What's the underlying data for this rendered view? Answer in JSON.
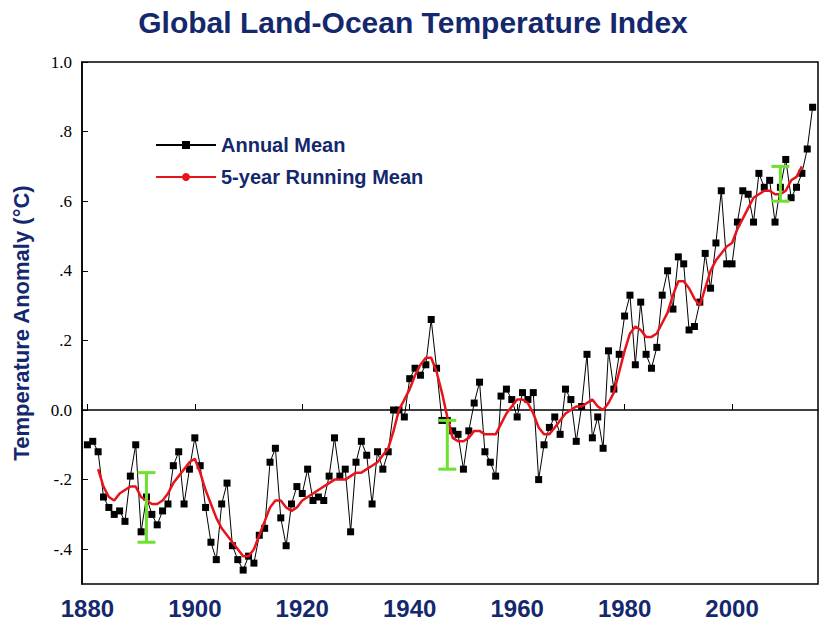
{
  "chart_data": {
    "type": "line",
    "title": "Global Land-Ocean Temperature Index",
    "y_label": "Temperature Anomaly (°C)",
    "legend": "upper left",
    "grid": false,
    "xlim": [
      1879,
      2016
    ],
    "xticks": [
      1880,
      1900,
      1920,
      1940,
      1960,
      1980,
      2000
    ],
    "ylim": [
      -0.5,
      1.0
    ],
    "yticks": [
      {
        "value": -0.4,
        "label": "-.4"
      },
      {
        "value": -0.2,
        "label": "-.2"
      },
      {
        "value": 0,
        "label": "0.0"
      },
      {
        "value": 0.2,
        "label": ".2"
      },
      {
        "value": 0.4,
        "label": ".4"
      },
      {
        "value": 0.6,
        "label": ".6"
      },
      {
        "value": 0.8,
        "label": ".8"
      },
      {
        "value": 1.0,
        "label": "1.0"
      }
    ],
    "x": [
      1880,
      1881,
      1882,
      1883,
      1884,
      1885,
      1886,
      1887,
      1888,
      1889,
      1890,
      1891,
      1892,
      1893,
      1894,
      1895,
      1896,
      1897,
      1898,
      1899,
      1900,
      1901,
      1902,
      1903,
      1904,
      1905,
      1906,
      1907,
      1908,
      1909,
      1910,
      1911,
      1912,
      1913,
      1914,
      1915,
      1916,
      1917,
      1918,
      1919,
      1920,
      1921,
      1922,
      1923,
      1924,
      1925,
      1926,
      1927,
      1928,
      1929,
      1930,
      1931,
      1932,
      1933,
      1934,
      1935,
      1936,
      1937,
      1938,
      1939,
      1940,
      1941,
      1942,
      1943,
      1944,
      1945,
      1946,
      1947,
      1948,
      1949,
      1950,
      1951,
      1952,
      1953,
      1954,
      1955,
      1956,
      1957,
      1958,
      1959,
      1960,
      1961,
      1962,
      1963,
      1964,
      1965,
      1966,
      1967,
      1968,
      1969,
      1970,
      1971,
      1972,
      1973,
      1974,
      1975,
      1976,
      1977,
      1978,
      1979,
      1980,
      1981,
      1982,
      1983,
      1984,
      1985,
      1986,
      1987,
      1988,
      1989,
      1990,
      1991,
      1992,
      1993,
      1994,
      1995,
      1996,
      1997,
      1998,
      1999,
      2000,
      2001,
      2002,
      2003,
      2004,
      2005,
      2006,
      2007,
      2008,
      2009,
      2010,
      2011,
      2012,
      2013,
      2014,
      2015
    ],
    "series": [
      {
        "name": "Annual Mean",
        "color": "#000000",
        "marker": "square",
        "line_style": "solid",
        "values": [
          -0.1,
          -0.09,
          -0.12,
          -0.25,
          -0.28,
          -0.3,
          -0.29,
          -0.32,
          -0.19,
          -0.1,
          -0.35,
          -0.25,
          -0.3,
          -0.33,
          -0.29,
          -0.27,
          -0.16,
          -0.12,
          -0.27,
          -0.17,
          -0.08,
          -0.16,
          -0.28,
          -0.38,
          -0.43,
          -0.27,
          -0.21,
          -0.39,
          -0.43,
          -0.46,
          -0.42,
          -0.44,
          -0.36,
          -0.34,
          -0.15,
          -0.11,
          -0.31,
          -0.39,
          -0.27,
          -0.22,
          -0.24,
          -0.17,
          -0.26,
          -0.25,
          -0.26,
          -0.19,
          -0.08,
          -0.19,
          -0.17,
          -0.35,
          -0.15,
          -0.09,
          -0.13,
          -0.27,
          -0.12,
          -0.17,
          -0.12,
          0.0,
          0.0,
          -0.02,
          0.09,
          0.12,
          0.1,
          0.13,
          0.26,
          0.12,
          -0.03,
          -0.03,
          -0.06,
          -0.07,
          -0.17,
          -0.06,
          0.02,
          0.08,
          -0.12,
          -0.15,
          -0.19,
          0.04,
          0.06,
          0.03,
          -0.02,
          0.05,
          0.03,
          0.05,
          -0.2,
          -0.1,
          -0.05,
          -0.02,
          -0.07,
          0.06,
          0.03,
          -0.09,
          0.01,
          0.16,
          -0.08,
          -0.02,
          -0.11,
          0.17,
          0.06,
          0.16,
          0.27,
          0.33,
          0.13,
          0.31,
          0.16,
          0.12,
          0.18,
          0.33,
          0.4,
          0.29,
          0.44,
          0.42,
          0.23,
          0.24,
          0.31,
          0.45,
          0.35,
          0.48,
          0.63,
          0.42,
          0.42,
          0.54,
          0.63,
          0.62,
          0.54,
          0.68,
          0.64,
          0.66,
          0.54,
          0.64,
          0.72,
          0.61,
          0.64,
          0.68,
          0.75,
          0.87
        ]
      },
      {
        "name": "5-year Running Mean",
        "color": "#e8141b",
        "line_style": "solid",
        "values": [
          null,
          null,
          -0.17,
          -0.22,
          -0.25,
          -0.26,
          -0.24,
          -0.23,
          -0.22,
          -0.22,
          -0.25,
          -0.26,
          -0.27,
          -0.27,
          -0.26,
          -0.24,
          -0.21,
          -0.19,
          -0.17,
          -0.15,
          -0.14,
          -0.18,
          -0.23,
          -0.27,
          -0.31,
          -0.34,
          -0.36,
          -0.38,
          -0.4,
          -0.42,
          -0.42,
          -0.4,
          -0.36,
          -0.32,
          -0.28,
          -0.26,
          -0.26,
          -0.28,
          -0.29,
          -0.28,
          -0.26,
          -0.25,
          -0.24,
          -0.23,
          -0.22,
          -0.21,
          -0.2,
          -0.2,
          -0.2,
          -0.19,
          -0.18,
          -0.18,
          -0.17,
          -0.16,
          -0.15,
          -0.13,
          -0.11,
          -0.06,
          0.0,
          0.03,
          0.06,
          0.1,
          0.13,
          0.15,
          0.15,
          0.11,
          0.05,
          -0.02,
          -0.08,
          -0.09,
          -0.09,
          -0.08,
          -0.06,
          -0.06,
          -0.07,
          -0.07,
          -0.07,
          -0.04,
          -0.01,
          0.01,
          0.03,
          0.03,
          0.02,
          -0.01,
          -0.05,
          -0.07,
          -0.07,
          -0.05,
          -0.03,
          -0.01,
          0.0,
          0.01,
          0.01,
          0.02,
          0.03,
          0.01,
          0.0,
          0.02,
          0.05,
          0.11,
          0.17,
          0.22,
          0.24,
          0.23,
          0.21,
          0.21,
          0.22,
          0.25,
          0.28,
          0.33,
          0.37,
          0.37,
          0.35,
          0.32,
          0.3,
          0.35,
          0.4,
          0.43,
          0.45,
          0.47,
          0.48,
          0.52,
          0.55,
          0.58,
          0.61,
          0.62,
          0.63,
          0.63,
          0.62,
          0.62,
          0.63,
          0.66,
          0.67,
          0.7,
          null,
          null
        ]
      }
    ],
    "error_bars": [
      {
        "x": 1891,
        "low": -0.38,
        "high": -0.18
      },
      {
        "x": 1947,
        "low": -0.17,
        "high": -0.03
      },
      {
        "x": 2009,
        "low": 0.6,
        "high": 0.7
      }
    ]
  }
}
